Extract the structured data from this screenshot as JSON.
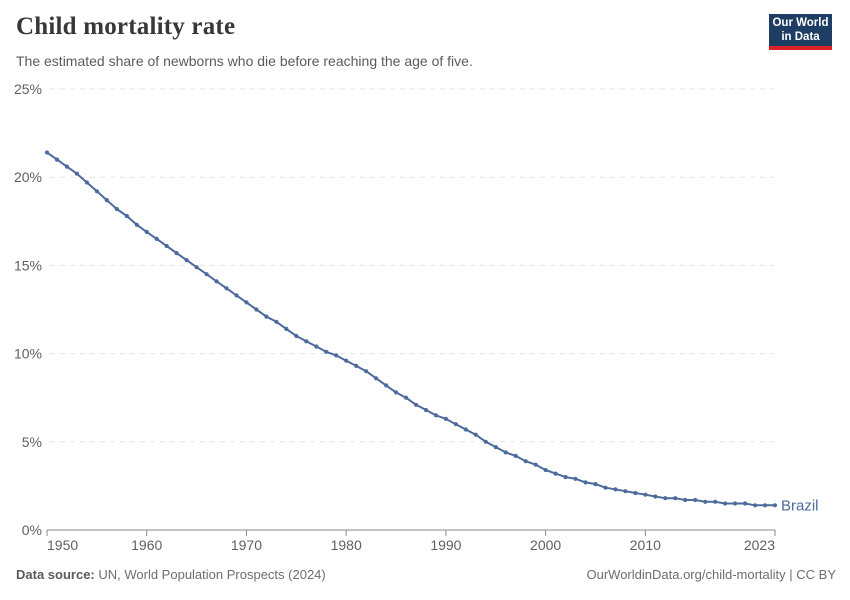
{
  "header": {
    "title": "Child mortality rate",
    "subtitle": "The estimated share of newborns who die before reaching the age of five.",
    "logo": {
      "line1": "Our World",
      "line2": "in Data"
    }
  },
  "footer": {
    "source_label": "Data source:",
    "source_text": " UN, World Population Prospects (2024)",
    "link_text": "OurWorldinData.org/child-mortality | CC BY"
  },
  "colors": {
    "line": "#4c6a9c",
    "entity_label": "#4c6a9c",
    "grid": "#e3e3e3",
    "axis": "#8a8a8a",
    "tick_label": "#606060",
    "title": "#383838",
    "subtitle": "#5b5b5b",
    "logo_bg": "#1d3d63",
    "logo_red": "#dc2127"
  },
  "chart_data": {
    "type": "line",
    "title": "Child mortality rate",
    "subtitle": "The estimated share of newborns who die before reaching the age of five.",
    "entity": "Brazil",
    "unit": "%",
    "xlabel": "",
    "ylabel": "",
    "ylim": [
      0,
      25
    ],
    "yticks": [
      {
        "value": 0,
        "label": "0%"
      },
      {
        "value": 5,
        "label": "5%"
      },
      {
        "value": 10,
        "label": "10%"
      },
      {
        "value": 15,
        "label": "15%"
      },
      {
        "value": 20,
        "label": "20%"
      },
      {
        "value": 25,
        "label": "25%"
      }
    ],
    "xticks": [
      1950,
      1960,
      1970,
      1980,
      1990,
      2000,
      2010,
      2023
    ],
    "grid": "horizontal-dashed",
    "legend_position": "end-of-line-label",
    "years": [
      1950,
      1951,
      1952,
      1953,
      1954,
      1955,
      1956,
      1957,
      1958,
      1959,
      1960,
      1961,
      1962,
      1963,
      1964,
      1965,
      1966,
      1967,
      1968,
      1969,
      1970,
      1971,
      1972,
      1973,
      1974,
      1975,
      1976,
      1977,
      1978,
      1979,
      1980,
      1981,
      1982,
      1983,
      1984,
      1985,
      1986,
      1987,
      1988,
      1989,
      1990,
      1991,
      1992,
      1993,
      1994,
      1995,
      1996,
      1997,
      1998,
      1999,
      2000,
      2001,
      2002,
      2003,
      2004,
      2005,
      2006,
      2007,
      2008,
      2009,
      2010,
      2011,
      2012,
      2013,
      2014,
      2015,
      2016,
      2017,
      2018,
      2019,
      2020,
      2021,
      2022,
      2023
    ],
    "series": [
      {
        "name": "Brazil",
        "values": [
          21.4,
          21.0,
          20.6,
          20.2,
          19.7,
          19.2,
          18.7,
          18.2,
          17.8,
          17.3,
          16.9,
          16.5,
          16.1,
          15.7,
          15.3,
          14.9,
          14.5,
          14.1,
          13.7,
          13.3,
          12.9,
          12.5,
          12.1,
          11.8,
          11.4,
          11.0,
          10.7,
          10.4,
          10.1,
          9.9,
          9.6,
          9.3,
          9.0,
          8.6,
          8.2,
          7.8,
          7.5,
          7.1,
          6.8,
          6.5,
          6.3,
          6.0,
          5.7,
          5.4,
          5.0,
          4.7,
          4.4,
          4.2,
          3.9,
          3.7,
          3.4,
          3.2,
          3.0,
          2.9,
          2.7,
          2.6,
          2.4,
          2.3,
          2.2,
          2.1,
          2.0,
          1.9,
          1.8,
          1.8,
          1.7,
          1.7,
          1.6,
          1.6,
          1.5,
          1.5,
          1.5,
          1.4,
          1.4,
          1.4
        ]
      }
    ]
  }
}
